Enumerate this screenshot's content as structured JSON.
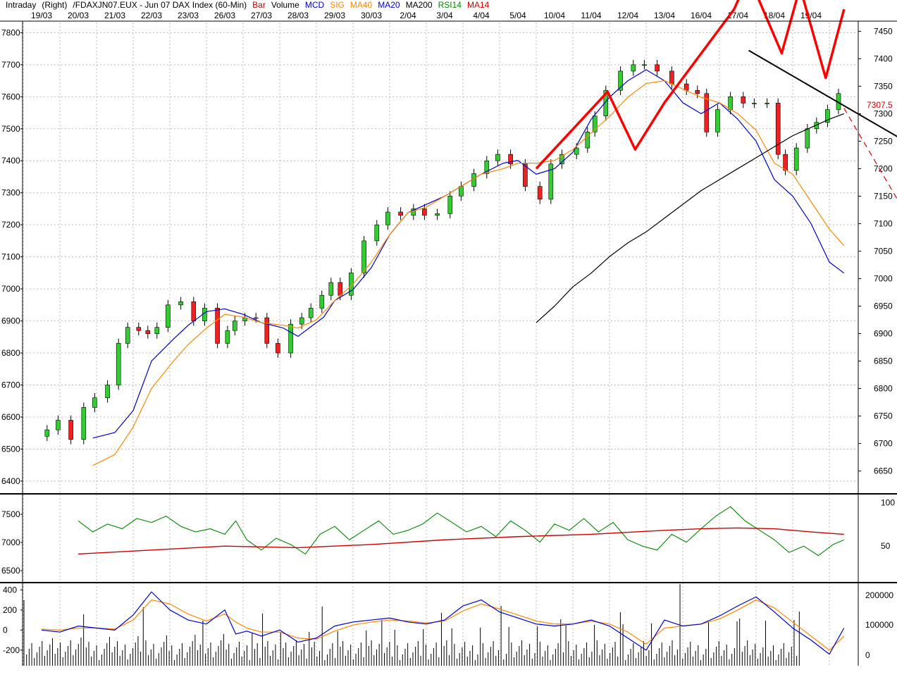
{
  "header": [
    {
      "text": "Intraday",
      "color": "#000000"
    },
    {
      "text": "(Right)",
      "color": "#000000"
    },
    {
      "text": "/FDAXJN07.EUX - Jun 07  DAX Index (60-Min)",
      "color": "#000000"
    },
    {
      "text": "Bar",
      "color": "#cc0000"
    },
    {
      "text": "Volume",
      "color": "#000000"
    },
    {
      "text": "MCD",
      "color": "#0000cc"
    },
    {
      "text": "SIG",
      "color": "#ff8800"
    },
    {
      "text": "MA40",
      "color": "#ff8800"
    },
    {
      "text": "MA20",
      "color": "#0000cc"
    },
    {
      "text": "MA200",
      "color": "#000000"
    },
    {
      "text": "RSI14",
      "color": "#008800"
    },
    {
      "text": "MA14",
      "color": "#cc0000"
    }
  ],
  "chart_data": {
    "type": "candlestick",
    "dates": [
      "19/03",
      "20/03",
      "21/03",
      "22/03",
      "23/03",
      "26/03",
      "27/03",
      "28/03",
      "29/03",
      "30/03",
      "2/04",
      "3/04",
      "4/04",
      "5/04",
      "10/04",
      "11/04",
      "12/04",
      "13/04",
      "16/04",
      "17/04",
      "18/04",
      "19/04"
    ],
    "price_left_axis": {
      "ticks": [
        6400,
        6500,
        6600,
        6700,
        6800,
        6900,
        7000,
        7100,
        7200,
        7300,
        7400,
        7500,
        7600,
        7700,
        7800
      ],
      "range": [
        6380,
        7825
      ]
    },
    "price_right_axis": {
      "ticks": [
        6650,
        6700,
        6750,
        6800,
        6850,
        6900,
        6950,
        7000,
        7050,
        7100,
        7150,
        7200,
        7250,
        7300,
        7350,
        7400,
        7450
      ],
      "range": [
        6620,
        7462
      ]
    },
    "last_price_label": "7307.5",
    "price_series": {
      "name": "FDAX close",
      "x": [
        0,
        0.3,
        0.6,
        1,
        1.3,
        1.6,
        2,
        2.2,
        2.5,
        2.8,
        3,
        3.3,
        3.6,
        4,
        4.3,
        4.6,
        5,
        5.15,
        5.4,
        5.7,
        6,
        6.3,
        6.6,
        7,
        7.2,
        7.5,
        7.8,
        8,
        8.3,
        8.6,
        9,
        9.3,
        9.6,
        10,
        10.3,
        10.6,
        11,
        11.3,
        11.6,
        12,
        12.3,
        12.6,
        13,
        13.4,
        13.8,
        14,
        14.4,
        14.8,
        15,
        15.2,
        15.6,
        16,
        16.3,
        16.6,
        17,
        17.4,
        17.8,
        18,
        18.3,
        18.6,
        19,
        19.3,
        19.6,
        20,
        20.2,
        20.4,
        20.8,
        21,
        21.3,
        21.6,
        21.9
      ],
      "values": [
        6540,
        6560,
        6590,
        6530,
        6630,
        6660,
        6700,
        6830,
        6880,
        6870,
        6860,
        6880,
        6950,
        6960,
        6900,
        6940,
        6830,
        6870,
        6900,
        6910,
        6910,
        6830,
        6800,
        6890,
        6910,
        6940,
        6980,
        7020,
        6980,
        7050,
        7150,
        7200,
        7240,
        7230,
        7250,
        7230,
        7235,
        7290,
        7320,
        7360,
        7400,
        7420,
        7390,
        7320,
        7280,
        7390,
        7420,
        7440,
        7490,
        7540,
        7620,
        7680,
        7700,
        7700,
        7680,
        7640,
        7620,
        7610,
        7490,
        7560,
        7600,
        7580,
        7580,
        7580,
        7420,
        7370,
        7440,
        7500,
        7520,
        7560,
        7610
      ]
    },
    "indicators": [
      {
        "name": "MA20",
        "color": "#0000cc",
        "x": [
          1.4,
          2,
          2.5,
          3,
          3.6,
          4,
          4.5,
          5,
          5.5,
          6,
          6.6,
          7,
          7.3,
          7.7,
          8,
          8.5,
          9,
          9.5,
          10,
          10.5,
          11,
          11.5,
          12,
          12.6,
          13,
          13.5,
          14,
          14.5,
          15,
          15.5,
          16,
          16.5,
          17,
          17.5,
          18,
          18.5,
          19,
          19.5,
          20,
          20.5,
          21,
          21.5,
          21.9
        ],
        "values": [
          6710,
          6720,
          6760,
          6850,
          6890,
          6915,
          6940,
          6945,
          6935,
          6920,
          6910,
          6895,
          6910,
          6930,
          6960,
          6980,
          7020,
          7080,
          7120,
          7135,
          7150,
          7170,
          7190,
          7210,
          7215,
          7190,
          7200,
          7230,
          7290,
          7330,
          7360,
          7380,
          7360,
          7320,
          7300,
          7320,
          7290,
          7250,
          7180,
          7150,
          7100,
          7030,
          7010
        ]
      },
      {
        "name": "MA40",
        "color": "#ff8800",
        "x": [
          1.4,
          2,
          2.5,
          3,
          3.6,
          4,
          4.5,
          5,
          5.5,
          6,
          6.6,
          7,
          7.5,
          8,
          8.5,
          9,
          9.5,
          10,
          10.5,
          11,
          11.5,
          12,
          12.6,
          13,
          13.5,
          14,
          14.5,
          15,
          15.5,
          16,
          16.5,
          17,
          17.5,
          18,
          18.5,
          19,
          19.5,
          20,
          20.5,
          21,
          21.5,
          21.9
        ],
        "values": [
          6660,
          6680,
          6730,
          6800,
          6850,
          6880,
          6910,
          6935,
          6930,
          6920,
          6915,
          6910,
          6925,
          6960,
          6990,
          7030,
          7080,
          7120,
          7130,
          7150,
          7170,
          7190,
          7200,
          7210,
          7210,
          7215,
          7235,
          7265,
          7295,
          7330,
          7355,
          7360,
          7345,
          7330,
          7320,
          7300,
          7270,
          7210,
          7190,
          7140,
          7090,
          7060
        ]
      },
      {
        "name": "MA200",
        "color": "#000000",
        "x": [
          13.5,
          14,
          14.5,
          15,
          15.5,
          16,
          16.5,
          17,
          17.5,
          18,
          18.5,
          19,
          19.5,
          20,
          20.5,
          21,
          21.5,
          21.9
        ],
        "values": [
          6920,
          6950,
          6985,
          7010,
          7040,
          7065,
          7085,
          7110,
          7135,
          7160,
          7180,
          7200,
          7220,
          7240,
          7260,
          7275,
          7290,
          7300
        ]
      }
    ],
    "pattern_lines": [
      {
        "name": "zigzag",
        "color": "#ff0000",
        "x": [
          13.5,
          15.45,
          16.2,
          17,
          18.9,
          19.3,
          20.2,
          20.7,
          21.4,
          21.9
        ],
        "values": [
          7200,
          7340,
          7235,
          7320,
          7490,
          7550,
          7410,
          7530,
          7365,
          7490
        ]
      },
      {
        "name": "resistance",
        "color": "#000000",
        "x": [
          19.3,
          23.7
        ],
        "values": [
          7415,
          7245
        ]
      },
      {
        "name": "projection",
        "color": "#cc0000",
        "x": [
          21.9,
          23.7
        ],
        "values": [
          7310,
          7105
        ]
      }
    ],
    "rsi": {
      "left_ticks": [
        6500,
        7000,
        7500
      ],
      "right_ticks": [
        50,
        100
      ],
      "range": [
        0,
        100
      ],
      "rsi14": {
        "color": "#008800",
        "x": [
          1,
          1.4,
          1.8,
          2.2,
          2.6,
          3,
          3.4,
          3.8,
          4.2,
          4.6,
          5,
          5.3,
          5.6,
          6,
          6.4,
          6.8,
          7.2,
          7.6,
          8,
          8.4,
          8.8,
          9.2,
          9.6,
          10,
          10.4,
          10.8,
          11.2,
          11.6,
          12,
          12.4,
          12.8,
          13.2,
          13.6,
          14,
          14.4,
          14.8,
          15.2,
          15.6,
          16,
          16.4,
          16.8,
          17.2,
          17.6,
          18,
          18.4,
          18.8,
          19.2,
          19.6,
          20,
          20.4,
          20.8,
          21.2,
          21.6,
          21.9
        ],
        "values": [
          72,
          58,
          68,
          62,
          75,
          70,
          78,
          65,
          58,
          62,
          55,
          72,
          48,
          35,
          50,
          42,
          30,
          55,
          65,
          48,
          60,
          72,
          55,
          60,
          68,
          82,
          70,
          58,
          65,
          52,
          72,
          60,
          45,
          68,
          60,
          75,
          58,
          70,
          48,
          40,
          35,
          55,
          45,
          62,
          78,
          90,
          72,
          60,
          48,
          32,
          40,
          28,
          42,
          48
        ]
      },
      "ma14": {
        "color": "#cc0000",
        "x": [
          1,
          3,
          5,
          7,
          9,
          11,
          13,
          15,
          17,
          18,
          19,
          20,
          21,
          21.9
        ],
        "values": [
          30,
          35,
          40,
          38,
          42,
          48,
          52,
          55,
          60,
          62,
          63,
          62,
          58,
          55
        ]
      }
    },
    "macd": {
      "left_ticks": [
        -200,
        0,
        200,
        400
      ],
      "right_ticks": [
        0,
        100000,
        200000
      ],
      "range": [
        -320,
        430
      ],
      "mcd": {
        "color": "#0000cc",
        "x": [
          0,
          0.5,
          1,
          1.5,
          2,
          2.5,
          3,
          3.5,
          4,
          4.5,
          5,
          5.3,
          5.6,
          6,
          6.5,
          7,
          7.5,
          8,
          8.5,
          9,
          9.5,
          10,
          10.5,
          11,
          11.5,
          12,
          12.5,
          13,
          13.5,
          14,
          14.5,
          15,
          15.5,
          16,
          16.5,
          17,
          17.5,
          18,
          18.5,
          19,
          19.5,
          20,
          20.5,
          21,
          21.5,
          21.9
        ],
        "values": [
          0,
          -20,
          40,
          20,
          0,
          150,
          380,
          200,
          100,
          60,
          200,
          -40,
          -10,
          -60,
          0,
          -120,
          -80,
          40,
          80,
          100,
          120,
          80,
          60,
          100,
          240,
          300,
          180,
          120,
          60,
          40,
          60,
          100,
          40,
          -80,
          -200,
          100,
          40,
          60,
          140,
          240,
          330,
          180,
          20,
          -100,
          -240,
          20
        ]
      },
      "sig": {
        "color": "#ff8800",
        "x": [
          0,
          0.5,
          1,
          1.5,
          2,
          2.5,
          3,
          3.5,
          4,
          4.5,
          5,
          5.3,
          5.6,
          6,
          6.5,
          7,
          7.5,
          8,
          8.5,
          9,
          9.5,
          10,
          10.5,
          11,
          11.5,
          12,
          12.5,
          13,
          13.5,
          14,
          14.5,
          15,
          15.5,
          16,
          16.5,
          17,
          17.5,
          18,
          18.5,
          19,
          19.5,
          20,
          20.5,
          21,
          21.5,
          21.9
        ],
        "values": [
          10,
          0,
          20,
          20,
          10,
          100,
          300,
          260,
          160,
          90,
          160,
          80,
          20,
          -20,
          -20,
          -80,
          -90,
          -10,
          50,
          80,
          100,
          90,
          70,
          90,
          190,
          260,
          210,
          150,
          90,
          60,
          60,
          90,
          60,
          -20,
          -140,
          20,
          40,
          60,
          110,
          200,
          300,
          220,
          80,
          -60,
          -200,
          -60
        ]
      }
    }
  }
}
